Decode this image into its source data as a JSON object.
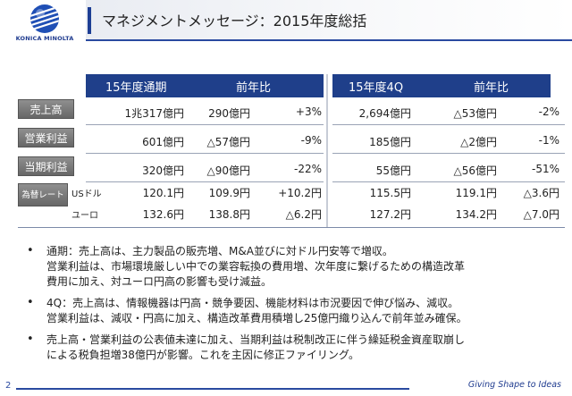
{
  "brand": {
    "name": "KONICA MINOLTA",
    "tagline": "Giving Shape to Ideas",
    "color": "#1f3b8f"
  },
  "page": {
    "title": "マネジメントメッセージ：2015年度総括",
    "number": "2"
  },
  "table": {
    "header_left": "15年度通期",
    "header_right": "15年度4Q",
    "header_compare": "前年比",
    "rows": [
      {
        "label": "売上高",
        "fy": "1兆317億円",
        "fy_diff": "290億円",
        "fy_pct": "+3%",
        "q4": "2,694億円",
        "q4_diff": "△53億円",
        "q4_pct": "-2%"
      },
      {
        "label": "営業利益",
        "fy": "601億円",
        "fy_diff": "△57億円",
        "fy_pct": "-9%",
        "q4": "185億円",
        "q4_diff": "△2億円",
        "q4_pct": "-1%"
      },
      {
        "label": "当期利益",
        "fy": "320億円",
        "fy_diff": "△90億円",
        "fy_pct": "-22%",
        "q4": "55億円",
        "q4_diff": "△56億円",
        "q4_pct": "-51%"
      }
    ],
    "fx": {
      "label": "為替レート",
      "rows": [
        {
          "currency": "USドル",
          "fy": "120.1円",
          "fy_prev": "109.9円",
          "fy_diff": "+10.2円",
          "q4": "115.5円",
          "q4_prev": "119.1円",
          "q4_diff": "△3.6円"
        },
        {
          "currency": "ユーロ",
          "fy": "132.6円",
          "fy_prev": "138.8円",
          "fy_diff": "△6.2円",
          "q4": "127.2円",
          "q4_prev": "134.2円",
          "q4_diff": "△7.0円"
        }
      ]
    }
  },
  "bullets": [
    {
      "marker": "•",
      "lines": [
        "通期：売上高は、主力製品の販売増、M&A並びに対ドル円安等で増収。",
        "営業利益は、市場環境厳しい中での業容転換の費用増、次年度に繋げるための構造改革",
        "費用に加え、対ユーロ円高の影響も受け減益。"
      ]
    },
    {
      "marker": "•",
      "lines": [
        "4Q：売上高は、情報機器は円高・競争要因、機能材料は市況要因で伸び悩み、減収。",
        "営業利益は、減収・円高に加え、構造改革費用積増し25億円織り込んで前年並み確保。"
      ]
    },
    {
      "marker": "•",
      "lines": [
        "売上高・営業利益の公表値未達に加え、当期利益は税制改正に伴う繰延税金資産取崩し",
        "による税負担増38億円が影響。これを主因に修正ファイリング。"
      ]
    }
  ]
}
